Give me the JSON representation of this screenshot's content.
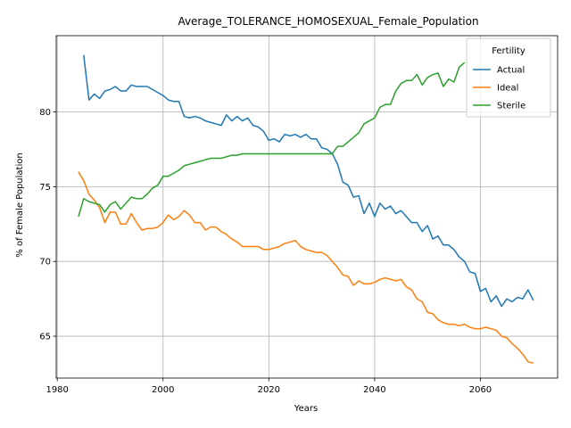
{
  "chart_data": {
    "type": "line",
    "title": "Average_TOLERANCE_HOMOSEXUAL_Female_Population",
    "xlabel": "Years",
    "ylabel": "% of Female Population",
    "xlim": [
      1979.8,
      2074.6
    ],
    "ylim": [
      62.2,
      85.1
    ],
    "xticks": [
      1980,
      2000,
      2020,
      2040,
      2060
    ],
    "yticks": [
      65,
      70,
      75,
      80
    ],
    "grid": true,
    "legend": {
      "title": "Fertility",
      "placement": "top-right"
    },
    "series": [
      {
        "name": "Actual",
        "color": "#1f77b4",
        "x": [
          1985,
          1986,
          1987,
          1988,
          1989,
          1990,
          1991,
          1992,
          1993,
          1994,
          1995,
          1996,
          1997,
          1998,
          1999,
          2000,
          2001,
          2002,
          2003,
          2004,
          2005,
          2006,
          2007,
          2008,
          2009,
          2010,
          2011,
          2012,
          2013,
          2014,
          2015,
          2016,
          2017,
          2018,
          2019,
          2020,
          2021,
          2022,
          2023,
          2024,
          2025,
          2026,
          2027,
          2028,
          2029,
          2030,
          2031,
          2032,
          2033,
          2034,
          2035,
          2036,
          2037,
          2038,
          2039,
          2040,
          2041,
          2042,
          2043,
          2044,
          2045,
          2046,
          2047,
          2048,
          2049,
          2050,
          2051,
          2052,
          2053,
          2054,
          2055,
          2056,
          2057,
          2058,
          2059,
          2060,
          2061,
          2062,
          2063,
          2064,
          2065,
          2066,
          2067,
          2068,
          2069,
          2070
        ],
        "values": [
          83.8,
          80.8,
          81.2,
          80.9,
          81.4,
          81.5,
          81.7,
          81.4,
          81.4,
          81.8,
          81.7,
          81.7,
          81.7,
          81.5,
          81.3,
          81.1,
          80.8,
          80.7,
          80.7,
          79.7,
          79.6,
          79.7,
          79.6,
          79.4,
          79.3,
          79.2,
          79.1,
          79.8,
          79.4,
          79.7,
          79.4,
          79.6,
          79.1,
          79.0,
          78.7,
          78.1,
          78.2,
          78.0,
          78.5,
          78.4,
          78.5,
          78.3,
          78.5,
          78.2,
          78.2,
          77.6,
          77.5,
          77.2,
          76.5,
          75.3,
          75.1,
          74.3,
          74.4,
          73.2,
          73.9,
          73.0,
          73.9,
          73.5,
          73.7,
          73.2,
          73.4,
          73.0,
          72.6,
          72.6,
          72.0,
          72.4,
          71.5,
          71.7,
          71.1,
          71.1,
          70.8,
          70.3,
          70.0,
          69.3,
          69.2,
          68.0,
          68.2,
          67.3,
          67.7,
          67.0,
          67.5,
          67.3,
          67.6,
          67.5,
          68.1,
          67.4
        ]
      },
      {
        "name": "Ideal",
        "color": "#ff7f0e",
        "x": [
          1984,
          1985,
          1986,
          1987,
          1988,
          1989,
          1990,
          1991,
          1992,
          1993,
          1994,
          1995,
          1996,
          1997,
          1998,
          1999,
          2000,
          2001,
          2002,
          2003,
          2004,
          2005,
          2006,
          2007,
          2008,
          2009,
          2010,
          2011,
          2012,
          2013,
          2014,
          2015,
          2016,
          2017,
          2018,
          2019,
          2020,
          2021,
          2022,
          2023,
          2024,
          2025,
          2026,
          2027,
          2028,
          2029,
          2030,
          2031,
          2032,
          2033,
          2034,
          2035,
          2036,
          2037,
          2038,
          2039,
          2040,
          2041,
          2042,
          2043,
          2044,
          2045,
          2046,
          2047,
          2048,
          2049,
          2050,
          2051,
          2052,
          2053,
          2054,
          2055,
          2056,
          2057,
          2058,
          2059,
          2060,
          2061,
          2062,
          2063,
          2064,
          2065,
          2066,
          2067,
          2068,
          2069,
          2070
        ],
        "values": [
          76.0,
          75.4,
          74.5,
          74.1,
          73.6,
          72.6,
          73.3,
          73.3,
          72.5,
          72.5,
          73.2,
          72.6,
          72.1,
          72.2,
          72.2,
          72.3,
          72.6,
          73.1,
          72.8,
          73.0,
          73.4,
          73.1,
          72.6,
          72.6,
          72.1,
          72.3,
          72.3,
          72.0,
          71.8,
          71.5,
          71.3,
          71.0,
          71.0,
          71.0,
          71.0,
          70.8,
          70.8,
          70.9,
          71.0,
          71.2,
          71.3,
          71.4,
          71.0,
          70.8,
          70.7,
          70.6,
          70.6,
          70.4,
          70.0,
          69.6,
          69.1,
          69.0,
          68.4,
          68.7,
          68.5,
          68.5,
          68.6,
          68.8,
          68.9,
          68.8,
          68.7,
          68.8,
          68.3,
          68.1,
          67.5,
          67.3,
          66.6,
          66.5,
          66.1,
          65.9,
          65.8,
          65.8,
          65.7,
          65.8,
          65.6,
          65.5,
          65.5,
          65.6,
          65.5,
          65.4,
          65.0,
          64.9,
          64.5,
          64.2,
          63.8,
          63.3,
          63.2
        ]
      },
      {
        "name": "Sterile",
        "color": "#2ca02c",
        "x": [
          1984,
          1985,
          1986,
          1987,
          1988,
          1989,
          1990,
          1991,
          1992,
          1993,
          1994,
          1995,
          1996,
          1997,
          1998,
          1999,
          2000,
          2001,
          2002,
          2003,
          2004,
          2005,
          2006,
          2007,
          2008,
          2009,
          2010,
          2011,
          2012,
          2013,
          2014,
          2015,
          2016,
          2017,
          2018,
          2019,
          2020,
          2021,
          2022,
          2023,
          2024,
          2025,
          2026,
          2027,
          2028,
          2029,
          2030,
          2031,
          2032,
          2033,
          2034,
          2035,
          2036,
          2037,
          2038,
          2039,
          2040,
          2041,
          2042,
          2043,
          2044,
          2045,
          2046,
          2047,
          2048,
          2049,
          2050,
          2051,
          2052,
          2053,
          2054,
          2055,
          2056,
          2057
        ],
        "values": [
          73.0,
          74.2,
          74.0,
          73.9,
          73.8,
          73.3,
          73.8,
          74.0,
          73.5,
          73.9,
          74.3,
          74.2,
          74.2,
          74.5,
          74.9,
          75.1,
          75.7,
          75.7,
          75.9,
          76.1,
          76.4,
          76.5,
          76.6,
          76.7,
          76.8,
          76.9,
          76.9,
          76.9,
          77.0,
          77.1,
          77.1,
          77.2,
          77.2,
          77.2,
          77.2,
          77.2,
          77.2,
          77.2,
          77.2,
          77.2,
          77.2,
          77.2,
          77.2,
          77.2,
          77.2,
          77.2,
          77.2,
          77.2,
          77.2,
          77.7,
          77.7,
          78.0,
          78.3,
          78.6,
          79.2,
          79.4,
          79.6,
          80.3,
          80.5,
          80.5,
          81.4,
          81.9,
          82.1,
          82.1,
          82.5,
          81.8,
          82.3,
          82.5,
          82.6,
          81.7,
          82.2,
          82.0,
          83.0,
          83.3
        ]
      }
    ]
  }
}
